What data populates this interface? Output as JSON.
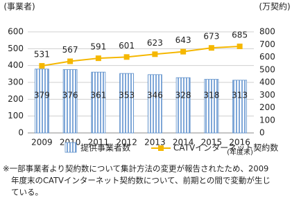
{
  "chart_data": {
    "type": "bar-line",
    "y_label": "(事業者)",
    "y2_label": "(万契約)",
    "categories": [
      "2009",
      "2010",
      "2011",
      "2012",
      "2013",
      "2014",
      "2015",
      "2016"
    ],
    "x_note": "(年度末)",
    "series": [
      {
        "name": "提供事業者数",
        "type": "bar",
        "color": "#5b8ec9",
        "values": [
          379,
          376,
          361,
          353,
          346,
          328,
          318,
          313
        ]
      },
      {
        "name": "CATVインターネット契約数",
        "type": "line",
        "axis": "y2",
        "color": "#f5b700",
        "values": [
          531,
          567,
          591,
          601,
          623,
          643,
          673,
          685
        ]
      }
    ],
    "ylim": [
      0,
      600
    ],
    "yticks": [
      0,
      100,
      200,
      300,
      400,
      500,
      600
    ],
    "y2lim": [
      0,
      800
    ],
    "y2ticks": [
      0,
      100,
      200,
      300,
      400,
      500,
      600,
      700,
      800
    ],
    "grid": true
  },
  "footnote": [
    "※一部事業者より契約数について集計方法の変更が報告されたため、2009",
    "年度末のCATVインターネット契約数について、前期との間で変動が生じ",
    "ている。"
  ]
}
